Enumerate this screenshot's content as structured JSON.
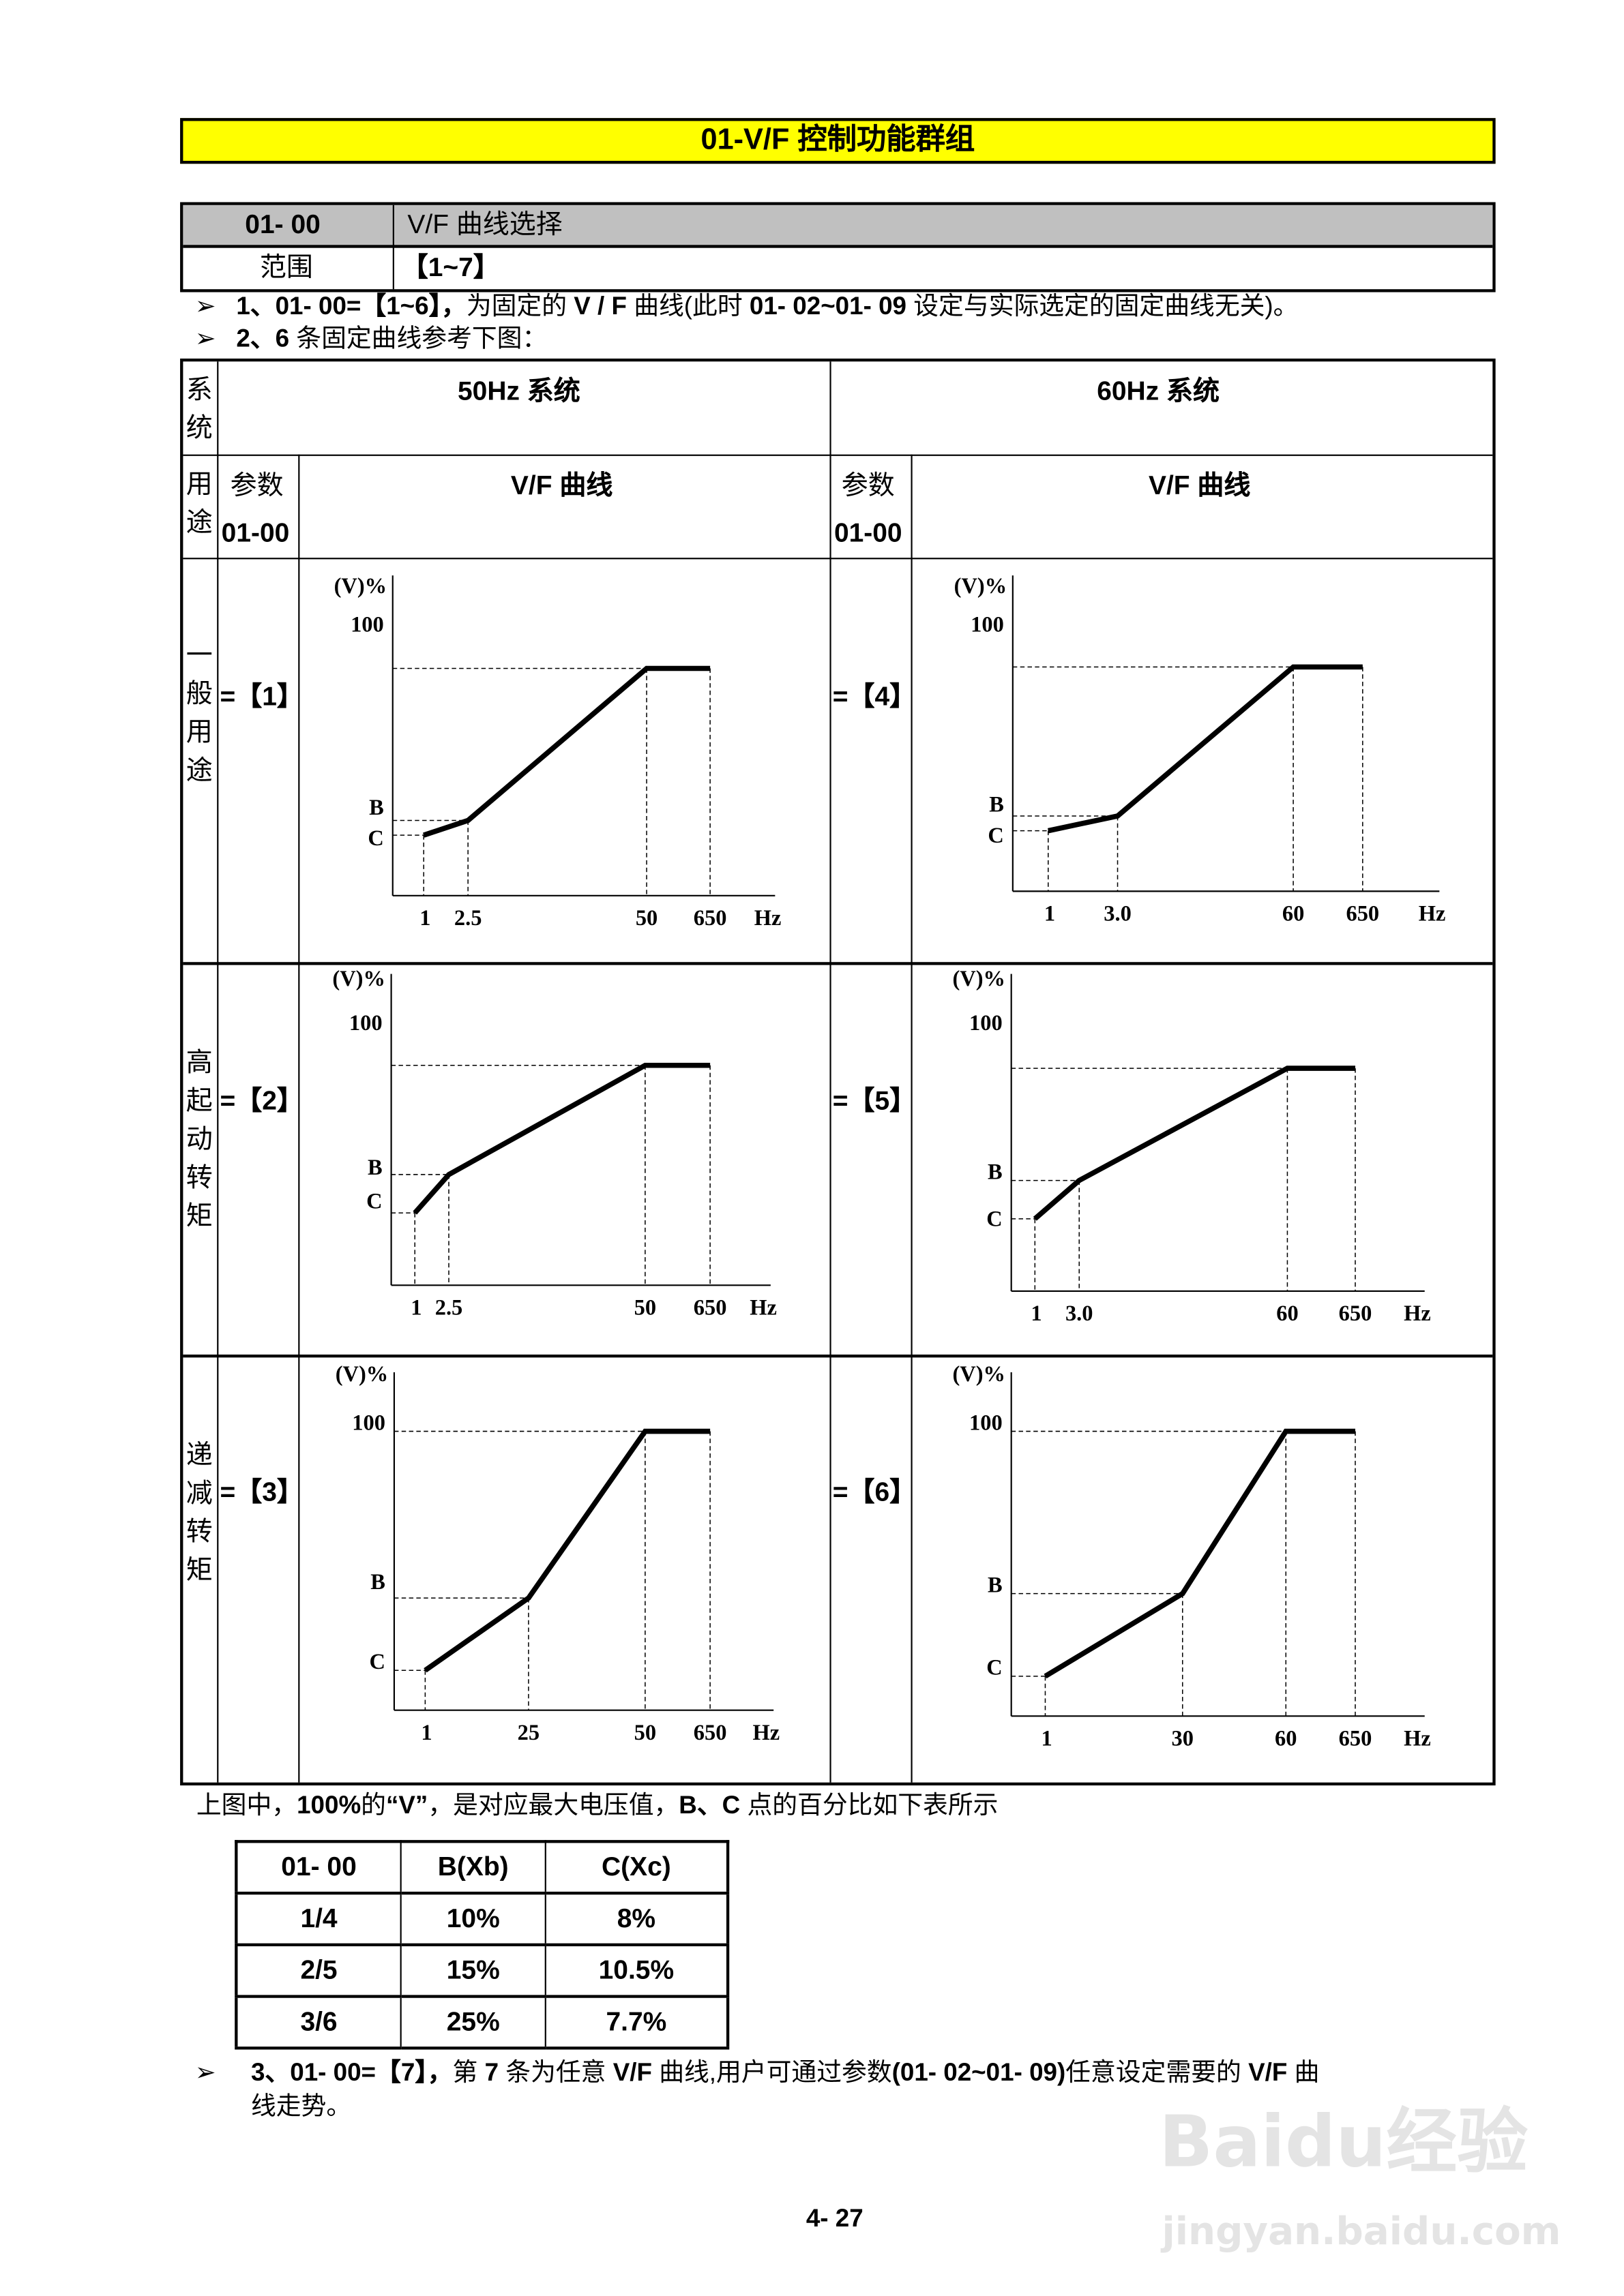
{
  "title": "01-V/F  控制功能群组",
  "param": {
    "code": "01- 00",
    "name": "V/F 曲线选择",
    "range_label": "范围",
    "range_value": "【1~7】"
  },
  "bullets": [
    {
      "arrow": "➢",
      "text_a": "1、01- 00=【1~6】，",
      "text_b": "为固定的 ",
      "text_c": "V / F",
      "text_d": " 曲线(此时 ",
      "text_e": "01- 02~01- 09",
      "text_f": " 设定与实际选定的固定曲线无关)。"
    },
    {
      "arrow": "➢",
      "text_a": "2、6",
      "text_b": " 条固定曲线参考下图："
    }
  ],
  "main_table": {
    "system_label": "系统",
    "hz50": "50Hz 系统",
    "hz60": "60Hz 系统",
    "usage_label": "用途",
    "param_label": "参数",
    "param_code": "01-00",
    "curve_label": "V/F 曲线",
    "rows": [
      {
        "usage": "一般用途",
        "sel50": "=【1】",
        "sel60": "=【4】"
      },
      {
        "usage": "高起动转矩",
        "sel50": "=【2】",
        "sel60": "=【5】"
      },
      {
        "usage": "递减转矩",
        "sel50": "=【3】",
        "sel60": "=【6】"
      }
    ]
  },
  "chart_data": [
    {
      "type": "line",
      "setting": "1",
      "ylabel": "(V)%",
      "y_max_label": "100",
      "b_label": "B",
      "c_label": "C",
      "xlabel": "Hz",
      "x_ticks": [
        "1",
        "2.5",
        "50",
        "650"
      ],
      "points": [
        [
          1,
          8
        ],
        [
          2.5,
          10
        ],
        [
          50,
          100
        ],
        [
          650,
          100
        ]
      ]
    },
    {
      "type": "line",
      "setting": "4",
      "ylabel": "(V)%",
      "y_max_label": "100",
      "b_label": "B",
      "c_label": "C",
      "xlabel": "Hz",
      "x_ticks": [
        "1",
        "3.0",
        "60",
        "650"
      ],
      "points": [
        [
          1,
          8
        ],
        [
          3.0,
          10
        ],
        [
          60,
          100
        ],
        [
          650,
          100
        ]
      ]
    },
    {
      "type": "line",
      "setting": "2",
      "ylabel": "(V)%",
      "y_max_label": "100",
      "b_label": "B",
      "c_label": "C",
      "xlabel": "Hz",
      "x_ticks": [
        "1",
        "2.5",
        "50",
        "650"
      ],
      "points": [
        [
          1,
          10.5
        ],
        [
          2.5,
          15
        ],
        [
          50,
          100
        ],
        [
          650,
          100
        ]
      ]
    },
    {
      "type": "line",
      "setting": "5",
      "ylabel": "(V)%",
      "y_max_label": "100",
      "b_label": "B",
      "c_label": "C",
      "xlabel": "Hz",
      "x_ticks": [
        "1",
        "3.0",
        "60",
        "650"
      ],
      "points": [
        [
          1,
          10.5
        ],
        [
          3.0,
          15
        ],
        [
          60,
          100
        ],
        [
          650,
          100
        ]
      ]
    },
    {
      "type": "line",
      "setting": "3",
      "ylabel": "(V)%",
      "y_max_label": "100",
      "b_label": "B",
      "c_label": "C",
      "xlabel": "Hz",
      "x_ticks": [
        "1",
        "25",
        "50",
        "650"
      ],
      "points": [
        [
          1,
          7.7
        ],
        [
          25,
          25
        ],
        [
          50,
          100
        ],
        [
          650,
          100
        ]
      ]
    },
    {
      "type": "line",
      "setting": "6",
      "ylabel": "(V)%",
      "y_max_label": "100",
      "b_label": "B",
      "c_label": "C",
      "xlabel": "Hz",
      "x_ticks": [
        "1",
        "30",
        "60",
        "650"
      ],
      "points": [
        [
          1,
          7.7
        ],
        [
          30,
          25
        ],
        [
          60,
          100
        ],
        [
          650,
          100
        ]
      ]
    }
  ],
  "note": {
    "a": "上图中，",
    "b": "100%",
    "c": "的",
    "d": "“V”",
    "e": "，是对应最大电压值，",
    "f": "B、C",
    "g": " 点的百分比如下表所示"
  },
  "bc_table": {
    "headers": [
      "01- 00",
      "B(Xb)",
      "C(Xc)"
    ],
    "rows": [
      [
        "1/4",
        "10%",
        "8%"
      ],
      [
        "2/5",
        "15%",
        "10.5%"
      ],
      [
        "3/6",
        "25%",
        "7.7%"
      ]
    ]
  },
  "bullet3": {
    "arrow": "➢",
    "a": "3、01- 00=【7】，",
    "b": "第 ",
    "c": "7",
    "d": " 条为任意 ",
    "e": "V/F",
    "f": " 曲线,用户可通过参数",
    "g": "(01- 02~01- 09)",
    "h": "任意设定需要的 ",
    "i": "V/F",
    "j": " 曲",
    "line2": "线走势。"
  },
  "page_number": "4- 27",
  "watermark": {
    "logo": "Baidu经验",
    "url": "jingyan.baidu.com"
  }
}
